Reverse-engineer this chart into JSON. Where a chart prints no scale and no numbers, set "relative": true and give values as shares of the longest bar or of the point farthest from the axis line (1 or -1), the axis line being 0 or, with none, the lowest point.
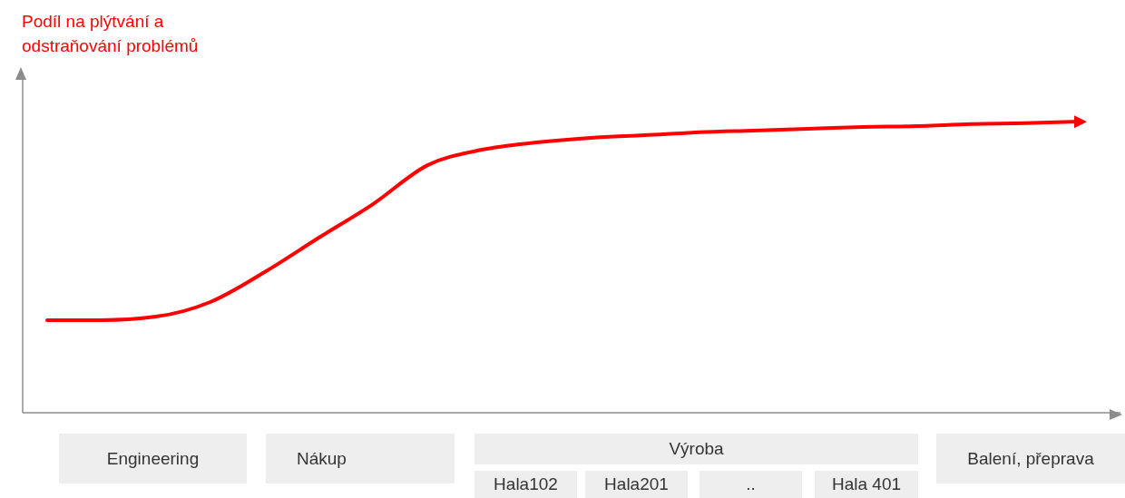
{
  "chart_data": {
    "type": "line",
    "relative": true,
    "ylabel": "Podíl na plýtvání a odstraňování problémů",
    "categories": [
      null,
      null,
      null,
      null,
      null,
      null,
      null,
      null,
      null,
      null,
      null,
      null,
      null,
      null,
      null,
      null,
      null,
      null,
      null,
      null
    ],
    "series": [
      {
        "color": "#ff0000",
        "values": [
          0.318,
          0.318,
          0.33,
          0.38,
          0.483,
          0.601,
          0.717,
          0.85,
          0.903,
          0.928,
          0.944,
          0.953,
          0.963,
          0.969,
          0.975,
          0.981,
          0.984,
          0.991,
          0.994,
          1
        ]
      }
    ],
    "annotations": [
      "Engineering",
      "Nákup",
      "Výroba",
      "Hala102",
      "Hala201",
      "..",
      "Hala 401",
      "Balení, přeprava"
    ],
    "grid": false,
    "legend": false,
    "marker": "none",
    "line_style": "solid"
  }
}
